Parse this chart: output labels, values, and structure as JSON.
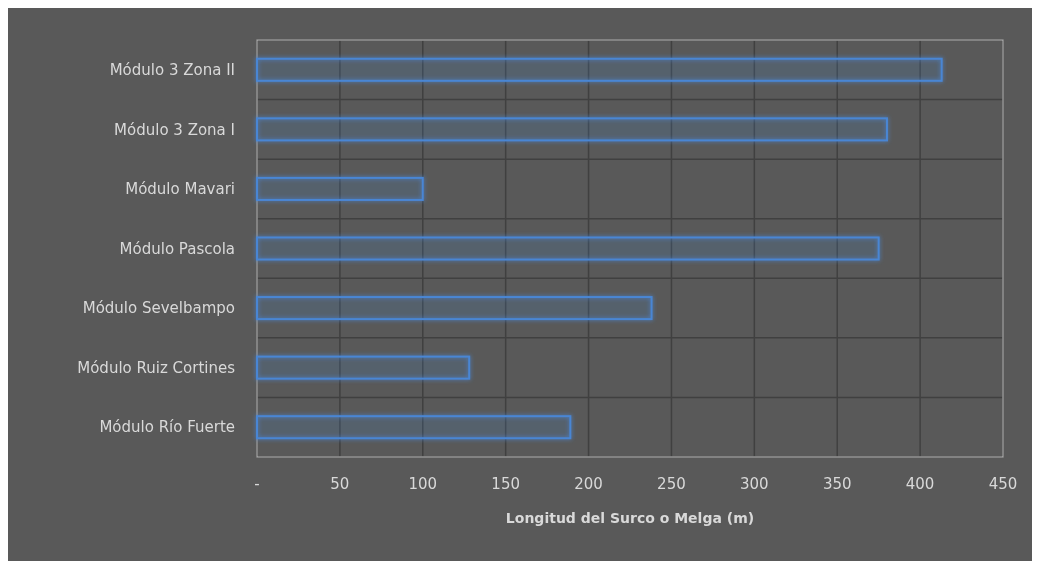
{
  "chart_data": {
    "type": "bar",
    "orientation": "horizontal",
    "xlabel": "Longitud del Surco o Melga (m)",
    "categories": [
      "Módulo 3 Zona II",
      "Módulo 3 Zona I",
      "Módulo Mavari",
      "Módulo Pascola",
      "Módulo Sevelbampo",
      "Módulo Ruiz Cortines",
      "Módulo Río Fuerte"
    ],
    "values": [
      413,
      380,
      100,
      375,
      238,
      128,
      189
    ],
    "color": "#4a86d4",
    "xlim": [
      0,
      450
    ],
    "xticks": [
      {
        "value": 0,
        "label": "-"
      },
      50,
      100,
      150,
      200,
      250,
      300,
      350,
      400,
      450
    ],
    "grid": true
  }
}
